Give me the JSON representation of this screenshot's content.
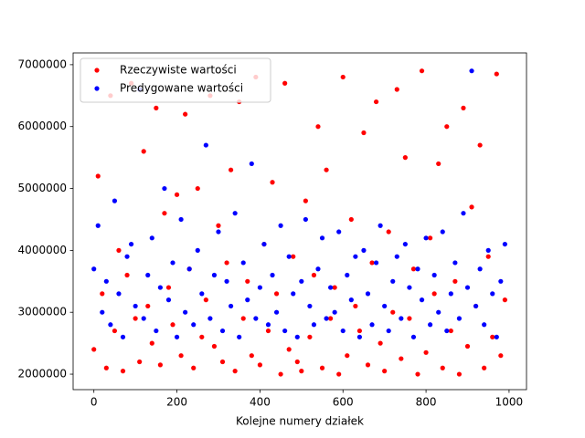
{
  "chart_data": {
    "type": "scatter",
    "x_label": "Kolejne numery działek",
    "x": [
      0,
      10,
      20,
      30,
      40,
      50,
      60,
      70,
      80,
      90,
      100,
      110,
      120,
      130,
      140,
      150,
      160,
      170,
      180,
      190,
      200,
      210,
      220,
      230,
      240,
      250,
      260,
      270,
      280,
      290,
      300,
      310,
      320,
      330,
      340,
      350,
      360,
      370,
      380,
      390,
      400,
      410,
      420,
      430,
      440,
      450,
      460,
      470,
      480,
      490,
      500,
      510,
      520,
      530,
      540,
      550,
      560,
      570,
      580,
      590,
      600,
      610,
      620,
      630,
      640,
      650,
      660,
      670,
      680,
      690,
      700,
      710,
      720,
      730,
      740,
      750,
      760,
      770,
      780,
      790,
      800,
      810,
      820,
      830,
      840,
      850,
      860,
      870,
      880,
      890,
      900,
      910,
      920,
      930,
      940,
      950,
      960,
      970,
      980,
      990
    ],
    "series": [
      {
        "name": "Rzeczywiste wartości",
        "color": "red",
        "values": [
          2400000,
          5200000,
          3300000,
          2100000,
          6500000,
          2700000,
          4000000,
          2050000,
          3600000,
          6700000,
          2900000,
          2200000,
          5600000,
          3100000,
          2500000,
          6300000,
          2150000,
          4600000,
          3400000,
          2800000,
          4900000,
          2300000,
          6200000,
          3700000,
          2100000,
          5000000,
          2600000,
          3200000,
          6500000,
          2450000,
          4400000,
          2200000,
          3800000,
          5300000,
          2050000,
          6400000,
          2900000,
          3500000,
          2300000,
          6800000,
          2150000,
          4100000,
          2700000,
          5100000,
          3300000,
          2000000,
          6700000,
          2400000,
          3900000,
          2200000,
          2050000,
          4800000,
          2600000,
          3600000,
          6000000,
          2100000,
          5300000,
          2900000,
          3400000,
          2000000,
          6800000,
          2300000,
          4500000,
          3100000,
          2700000,
          5900000,
          2150000,
          3800000,
          6400000,
          2500000,
          2050000,
          4300000,
          3000000,
          6600000,
          2250000,
          5500000,
          2900000,
          3700000,
          2000000,
          6900000,
          2350000,
          4200000,
          3300000,
          5400000,
          2100000,
          6000000,
          2700000,
          3500000,
          2000000,
          6300000,
          2450000,
          4700000,
          3100000,
          5700000,
          2100000,
          3900000,
          2600000,
          6850000,
          2300000,
          3200000
        ]
      },
      {
        "name": "Predygowane wartości",
        "color": "blue",
        "values": [
          3700000,
          4400000,
          3000000,
          3500000,
          2800000,
          4800000,
          3300000,
          2600000,
          3900000,
          4100000,
          3100000,
          6600000,
          2900000,
          3600000,
          4200000,
          2700000,
          3400000,
          5000000,
          3200000,
          3800000,
          2600000,
          4500000,
          3000000,
          3700000,
          2800000,
          4000000,
          3300000,
          5700000,
          2900000,
          3600000,
          4300000,
          2700000,
          3500000,
          3100000,
          4600000,
          2600000,
          3800000,
          3200000,
          5400000,
          2900000,
          3400000,
          4100000,
          2800000,
          3600000,
          3000000,
          4400000,
          2700000,
          3900000,
          3300000,
          2600000,
          3500000,
          4500000,
          3100000,
          2800000,
          3700000,
          4200000,
          2900000,
          3400000,
          3000000,
          4300000,
          2700000,
          3600000,
          3200000,
          3900000,
          2600000,
          4000000,
          3300000,
          2800000,
          3800000,
          4400000,
          3100000,
          2700000,
          3500000,
          3900000,
          2900000,
          4100000,
          3400000,
          2600000,
          3700000,
          3200000,
          4200000,
          2800000,
          3600000,
          3000000,
          4300000,
          2700000,
          3300000,
          3800000,
          2900000,
          4600000,
          3400000,
          6900000,
          3100000,
          3700000,
          2800000,
          4000000,
          3300000,
          2600000,
          3500000,
          4100000
        ]
      }
    ],
    "xlim": [
      -50,
      1042
    ],
    "ylim": [
      1750000,
      7190000
    ],
    "xticks": [
      0,
      200,
      400,
      600,
      800,
      1000
    ],
    "yticks": [
      2000000,
      3000000,
      4000000,
      5000000,
      6000000,
      7000000
    ],
    "legend": "upper left"
  }
}
